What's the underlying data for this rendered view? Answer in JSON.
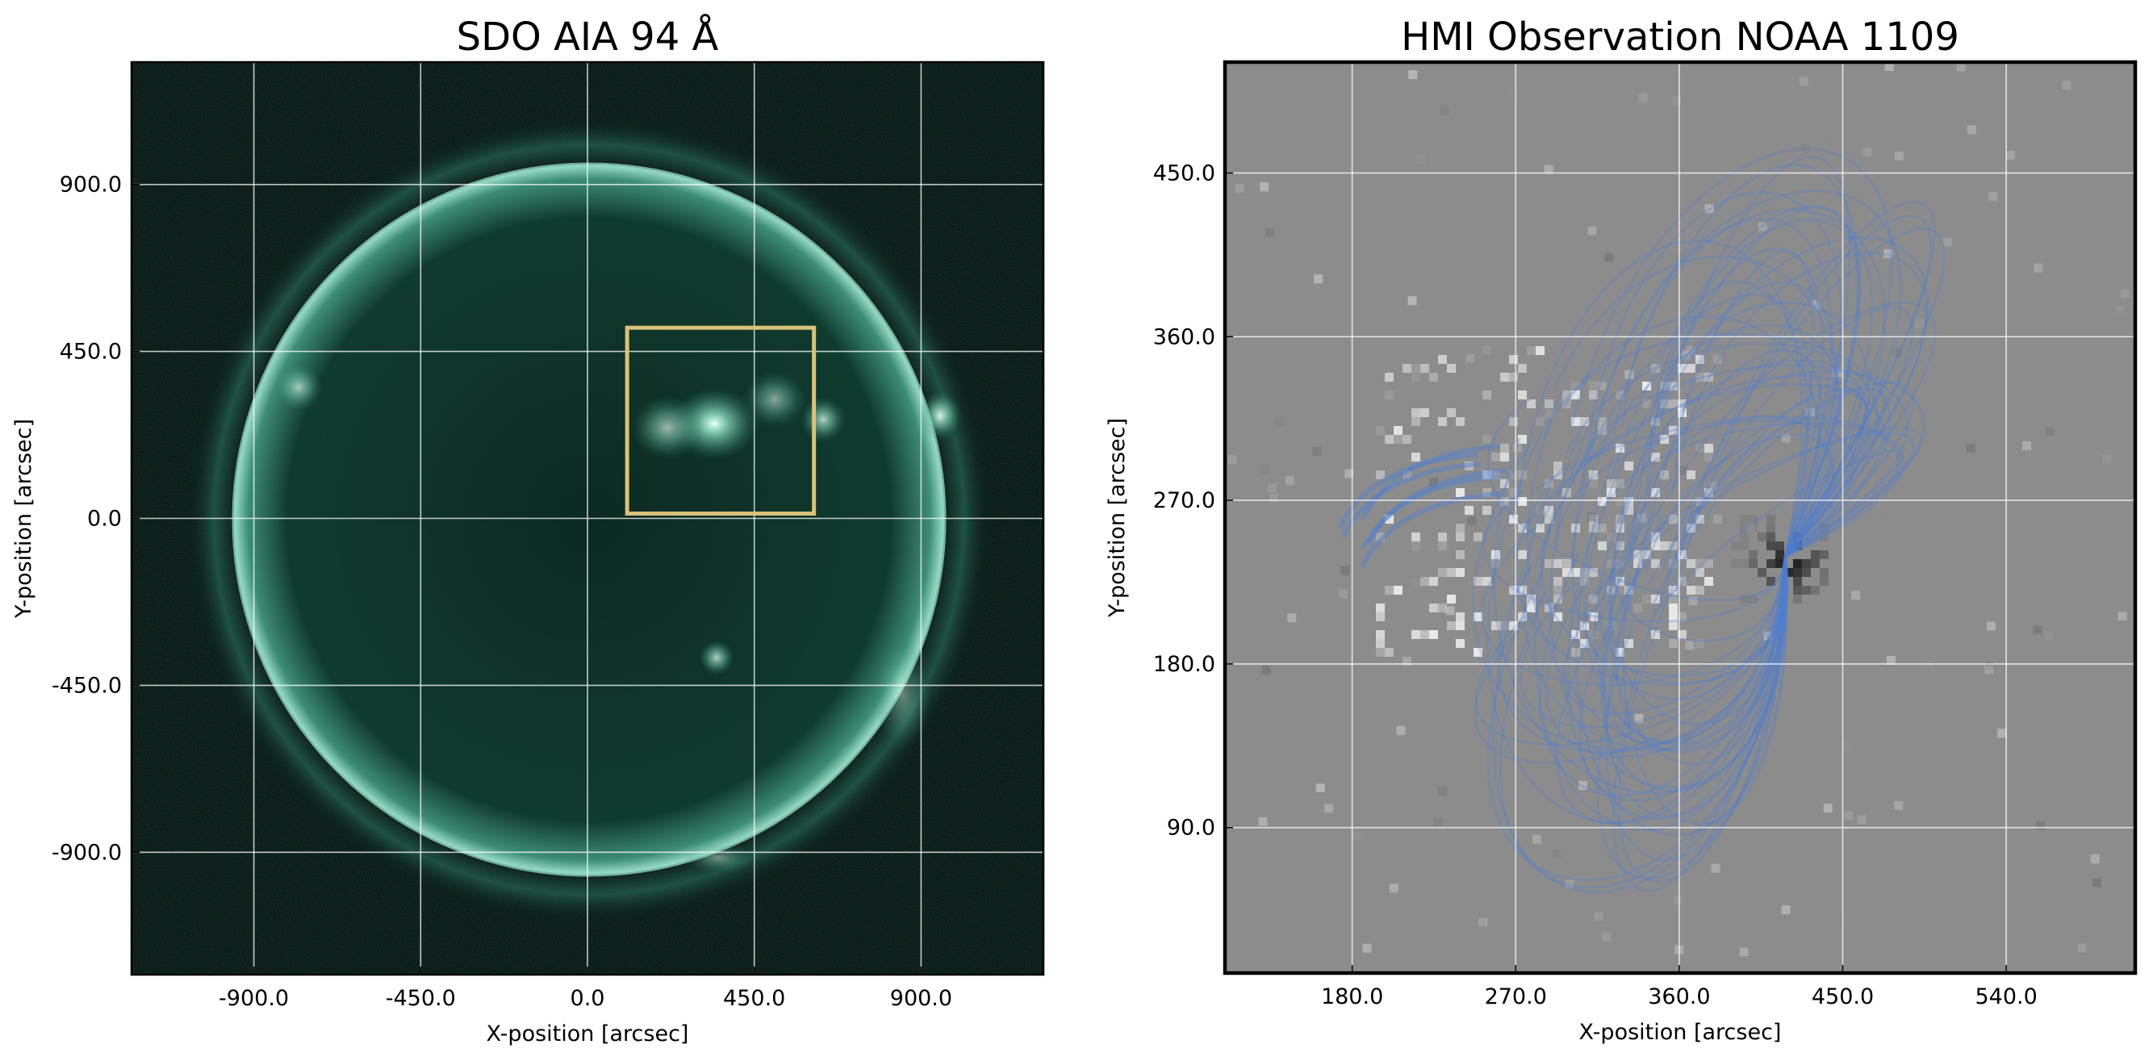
{
  "chart_data": [
    {
      "type": "image",
      "title": "SDO AIA 94 Å",
      "x_label": "X-position [arcsec]",
      "y_label": "Y-position [arcsec]",
      "xlim": [
        -1230,
        1230
      ],
      "ylim": [
        -1230,
        1230
      ],
      "xticks": [
        {
          "value": -900,
          "label": "-900.0"
        },
        {
          "value": -450,
          "label": "-450.0"
        },
        {
          "value": 0,
          "label": "0.0"
        },
        {
          "value": 450,
          "label": "450.0"
        },
        {
          "value": 900,
          "label": "900.0"
        }
      ],
      "yticks": [
        {
          "value": -900,
          "label": "-900.0"
        },
        {
          "value": -450,
          "label": "-450.0"
        },
        {
          "value": 0,
          "label": "0.0"
        },
        {
          "value": 450,
          "label": "450.0"
        },
        {
          "value": 900,
          "label": "900.0"
        }
      ],
      "grid": true,
      "box": {
        "x": [
          107,
          611
        ],
        "y": [
          13,
          514
        ],
        "color": "#d9c27a"
      }
    },
    {
      "type": "image",
      "title": "HMI Observation NOAA 1109",
      "x_label": "X-position [arcsec]",
      "y_label": "Y-position [arcsec]",
      "xlim": [
        110,
        611
      ],
      "ylim": [
        10,
        511
      ],
      "xticks": [
        {
          "value": 180,
          "label": "180.0"
        },
        {
          "value": 270,
          "label": "270.0"
        },
        {
          "value": 360,
          "label": "360.0"
        },
        {
          "value": 450,
          "label": "450.0"
        },
        {
          "value": 540,
          "label": "540.0"
        }
      ],
      "yticks": [
        {
          "value": 90,
          "label": "90.0"
        },
        {
          "value": 180,
          "label": "180.0"
        },
        {
          "value": 270,
          "label": "270.0"
        },
        {
          "value": 360,
          "label": "360.0"
        },
        {
          "value": 450,
          "label": "450.0"
        }
      ],
      "grid": true
    }
  ]
}
